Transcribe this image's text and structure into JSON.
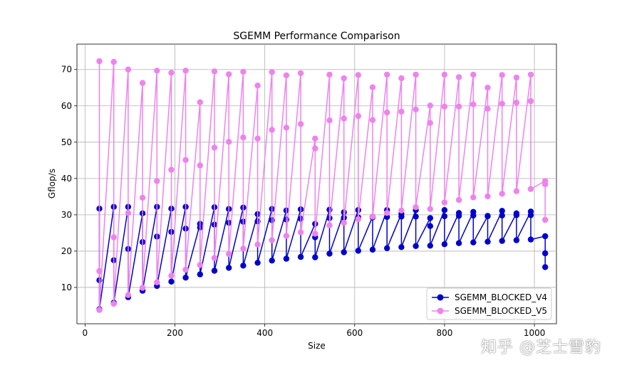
{
  "chart_data": {
    "type": "line",
    "title": "SGEMM Performance Comparison",
    "xlabel": "Size",
    "ylabel": "Gflop/s",
    "xlim": [
      -18,
      1049
    ],
    "ylim": [
      0,
      77
    ],
    "xticks": [
      0,
      200,
      400,
      600,
      800,
      1000
    ],
    "yticks": [
      10,
      20,
      30,
      40,
      50,
      60,
      70
    ],
    "grid": true,
    "legend_location": "lower-right",
    "series": [
      {
        "name": "SGEMM_BLOCKED_V4",
        "color": "#0000cc",
        "x": [
          32,
          32,
          32,
          64,
          64,
          64,
          96,
          96,
          96,
          128,
          128,
          128,
          160,
          160,
          160,
          192,
          192,
          192,
          224,
          224,
          224,
          256,
          256,
          256,
          288,
          288,
          288,
          320,
          320,
          320,
          352,
          352,
          352,
          384,
          384,
          384,
          416,
          416,
          416,
          448,
          448,
          448,
          480,
          480,
          480,
          512,
          512,
          512,
          544,
          544,
          544,
          576,
          576,
          576,
          608,
          608,
          608,
          640,
          640,
          640,
          672,
          672,
          672,
          704,
          704,
          704,
          736,
          736,
          736,
          768,
          768,
          768,
          800,
          800,
          800,
          832,
          832,
          832,
          864,
          864,
          864,
          896,
          896,
          896,
          928,
          928,
          928,
          960,
          960,
          960,
          992,
          992,
          992,
          1024,
          1024,
          1024
        ],
        "y": [
          31.7,
          12,
          4,
          32.2,
          17.5,
          5.8,
          32.2,
          20.6,
          7.3,
          30.4,
          22.5,
          9.1,
          32.2,
          24,
          10.4,
          31.7,
          25.3,
          11.6,
          32.2,
          26.2,
          12.7,
          27.5,
          26.5,
          13.6,
          32.1,
          27.3,
          14.6,
          31.6,
          27.8,
          15.4,
          32,
          28.1,
          16,
          30.2,
          28.2,
          16.8,
          31.6,
          28.5,
          17.4,
          31.2,
          28.7,
          17.9,
          31.5,
          28.9,
          18.4,
          27.5,
          23.8,
          18.3,
          31.4,
          29.1,
          19.3,
          30.7,
          29.2,
          19.7,
          31.3,
          29.3,
          20.1,
          29.5,
          29.3,
          20.4,
          31.3,
          29.4,
          20.8,
          30.3,
          29.5,
          21.1,
          31.3,
          29.5,
          21.4,
          29.1,
          26.9,
          21.5,
          31.3,
          29.6,
          21.9,
          30.5,
          29.7,
          22.2,
          30.8,
          29.8,
          22.4,
          29.6,
          29.7,
          22.6,
          31.1,
          29.8,
          22.8,
          30.4,
          29.9,
          23,
          30.9,
          29.9,
          23.2,
          24.1,
          19.4,
          15.6
        ]
      },
      {
        "name": "SGEMM_BLOCKED_V5",
        "color": "#ee82ee",
        "x": [
          32,
          32,
          32,
          64,
          64,
          64,
          96,
          96,
          96,
          128,
          128,
          128,
          160,
          160,
          160,
          192,
          192,
          192,
          224,
          224,
          224,
          256,
          256,
          256,
          288,
          288,
          288,
          320,
          320,
          320,
          352,
          352,
          352,
          384,
          384,
          384,
          416,
          416,
          416,
          448,
          448,
          448,
          480,
          480,
          480,
          512,
          512,
          512,
          544,
          544,
          544,
          576,
          576,
          576,
          608,
          608,
          608,
          640,
          640,
          640,
          672,
          672,
          672,
          704,
          704,
          704,
          736,
          736,
          736,
          768,
          768,
          768,
          800,
          800,
          800,
          832,
          832,
          832,
          864,
          864,
          864,
          896,
          896,
          896,
          928,
          928,
          928,
          960,
          960,
          960,
          992,
          992,
          992,
          1024,
          1024,
          1024
        ],
        "y": [
          72.3,
          14.5,
          3.8,
          72.1,
          23.8,
          5.5,
          70,
          30.5,
          7.9,
          66.3,
          34.7,
          9.9,
          69.7,
          39.3,
          11.4,
          69.1,
          42.4,
          13.2,
          69.7,
          45.1,
          14.9,
          61,
          43.6,
          16.2,
          69.5,
          48.5,
          18.1,
          68.7,
          50.1,
          19.2,
          69.4,
          51.3,
          20.7,
          65.6,
          51,
          21.8,
          69.3,
          53.4,
          23,
          68.4,
          54,
          24.2,
          69,
          55,
          25.2,
          51,
          48.3,
          24.8,
          68.6,
          56,
          27.1,
          67.6,
          56.5,
          27.8,
          68.5,
          57.2,
          28.8,
          65.1,
          56.1,
          29.5,
          68.6,
          58.2,
          30.5,
          67.6,
          58.4,
          31.2,
          68.6,
          59,
          32.1,
          60.1,
          55.3,
          31.6,
          68.6,
          59.8,
          33.4,
          67.9,
          59.8,
          34.1,
          68.6,
          60.4,
          34.8,
          65,
          59.2,
          35.1,
          68.5,
          60.6,
          35.8,
          67.8,
          60.9,
          36.5,
          68.6,
          61.3,
          37.1,
          39.3,
          38.4,
          28.6
        ]
      }
    ]
  },
  "watermark": "知乎 @芝士雪豹"
}
